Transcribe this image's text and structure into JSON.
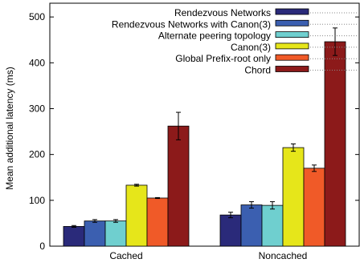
{
  "chart_data": {
    "type": "bar",
    "title": "",
    "xlabel": "",
    "ylabel": "Mean additional latency (ms)",
    "ylim": [
      0,
      530
    ],
    "yticks": [
      0,
      100,
      200,
      300,
      400,
      500
    ],
    "grid": false,
    "legend_position": "top-right",
    "categories": [
      "Cached",
      "Noncached"
    ],
    "series": [
      {
        "name": "Rendezvous Networks",
        "color": "#2a2a7a",
        "values": [
          43,
          68
        ],
        "errors": [
          2,
          6
        ]
      },
      {
        "name": "Rendezvous Networks with Canon(3)",
        "color": "#3b5fb0",
        "values": [
          55,
          90
        ],
        "errors": [
          3,
          7
        ]
      },
      {
        "name": "Alternate peering topology",
        "color": "#6fcfcf",
        "values": [
          55,
          89
        ],
        "errors": [
          3,
          8
        ]
      },
      {
        "name": "Canon(3)",
        "color": "#e6e61a",
        "values": [
          133,
          215
        ],
        "errors": [
          2,
          8
        ]
      },
      {
        "name": "Global Prefix-root only",
        "color": "#f05a28",
        "values": [
          105,
          170
        ],
        "errors": [
          1,
          7
        ]
      },
      {
        "name": "Chord",
        "color": "#8c1a1a",
        "values": [
          262,
          446
        ],
        "errors": [
          30,
          30
        ]
      }
    ]
  }
}
